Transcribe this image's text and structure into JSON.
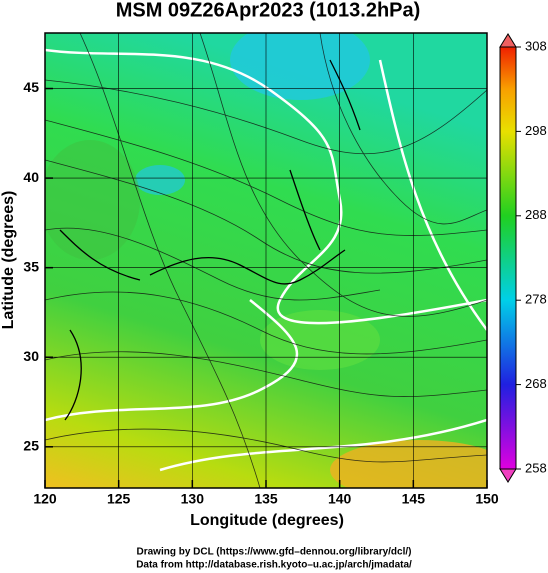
{
  "chart_data": {
    "type": "map",
    "title": "MSM 09Z26Apr2023 (1013.2hPa)",
    "x_label": "Longitude (degrees)",
    "y_label": "Latitude  (degrees)",
    "xlim": [
      120,
      150
    ],
    "ylim": [
      22.7,
      48.1
    ],
    "xticks": [
      120,
      125,
      130,
      135,
      140,
      145,
      150
    ],
    "yticks": [
      25,
      30,
      35,
      40,
      45
    ],
    "grid": true,
    "colorbar": {
      "lim": [
        258,
        308
      ],
      "ticks": [
        258,
        268,
        278,
        288,
        298,
        308
      ]
    }
  },
  "footer": {
    "line1": "Drawing by DCL (https://www.gfd–dennou.org/library/dcl/)",
    "line2": "Data from http://database.rish.kyoto–u.ac.jp/arch/jmadata/"
  }
}
